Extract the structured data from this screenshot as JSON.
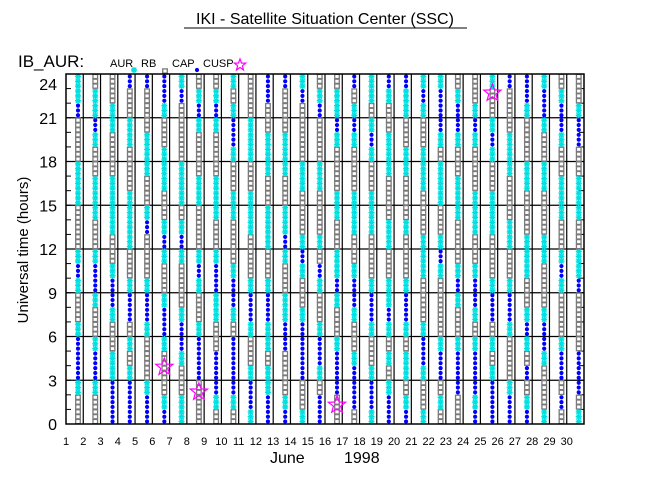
{
  "header": {
    "title": "IKI - Satellite Situation Center (SSC)"
  },
  "chart_data": {
    "type": "scatter",
    "title": "IKI - Satellite Situation Center (SSC)",
    "dataset_label": "IB_AUR:",
    "ylabel": "Universal time (hours)",
    "xlabel_month": "June",
    "xlabel_year": "1998",
    "xlim": [
      1,
      31
    ],
    "ylim": [
      0,
      24
    ],
    "grid": true,
    "x_ticks": [
      1,
      2,
      3,
      4,
      5,
      6,
      7,
      8,
      9,
      10,
      11,
      12,
      13,
      14,
      15,
      16,
      17,
      18,
      19,
      20,
      21,
      22,
      23,
      24,
      25,
      26,
      27,
      28,
      29,
      30
    ],
    "y_ticks": [
      0,
      3,
      6,
      9,
      12,
      15,
      18,
      21,
      24
    ],
    "legend_placement": "top-left",
    "legend": [
      {
        "label": "AUR",
        "marker": "asterisk",
        "color": "#00e0e0"
      },
      {
        "label": "RB",
        "marker": "square",
        "color": "#7a7a7a"
      },
      {
        "label": "CAP",
        "marker": "dot",
        "color": "#0000ff"
      },
      {
        "label": "CUSP",
        "marker": "star",
        "color": "#ff00ff"
      }
    ],
    "slot_codes": {
      "a": "AUR",
      "r": "RB",
      "c": "CAP"
    },
    "slots_note_hours": "each character = one UT hour, 0 to 23",
    "days": [
      {
        "day": 1,
        "hourly": "rracccarracarrraaarrrcaa"
      },
      {
        "day": 2,
        "hourly": "rraccarraccarraaarracaar"
      },
      {
        "day": 3,
        "hourly": "cccaarraccarraaaarrraarr"
      },
      {
        "day": 4,
        "hourly": "cccararccarraaaarrraarrc"
      },
      {
        "day": 5,
        "hourly": "ccarrraccarrrcarraaarrrc"
      },
      {
        "day": 6,
        "hourly": "carrraccarracarraaarracc"
      },
      {
        "day": 7,
        "hourly": "aarraccarrracaraaarrrrca"
      },
      {
        "day": 8,
        "hourly": "rrrcccarracarrraarrracar"
      },
      {
        "day": 9,
        "hourly": "racccrraaccarraaarrracar"
      },
      {
        "day": 10,
        "hourly": "raccccraccarrraarraccara"
      },
      {
        "day": 11,
        "hourly": "accarraccarrraaarraaarrr"
      },
      {
        "day": 12,
        "hourly": "ccaaraaccarraaarraaarrcc"
      },
      {
        "day": 13,
        "hourly": "carrrccaarracaarraaarrrc"
      },
      {
        "day": 14,
        "hourly": "arrccccarracarrraarrrrca"
      },
      {
        "day": 15,
        "hourly": "ccraccarracrarrraarrrcar"
      },
      {
        "day": 16,
        "hourly": "rrcccarracaarraarrracaar"
      },
      {
        "day": 17,
        "hourly": "rcccarraccarraaarrracarc"
      },
      {
        "day": 18,
        "hourly": "accarraccarrraaarracaraa"
      },
      {
        "day": 19,
        "hourly": "ccararacaarraarrraaarrac"
      },
      {
        "day": 20,
        "hourly": "caraaraccarrrarrraarraac"
      },
      {
        "day": 21,
        "hourly": "arraccarrraaarrraaarraca"
      },
      {
        "day": 22,
        "hourly": "rarccarrrracarraaaraccca"
      },
      {
        "day": 23,
        "hourly": "rrcccarracarrraaarraccar"
      },
      {
        "day": 24,
        "hourly": "cacccaraccarraaarrracarr"
      },
      {
        "day": 25,
        "hourly": "cccararccarrraaarracarra"
      },
      {
        "day": 26,
        "hourly": "ccarrraccarraarrraaarrrc"
      },
      {
        "day": 27,
        "hourly": "carcracarraaarrraarrracc"
      },
      {
        "day": 28,
        "hourly": "arrraccarrraarrraarracca"
      },
      {
        "day": 29,
        "hourly": "rcrccarrracarraaarraccar"
      },
      {
        "day": 30,
        "hourly": "arcccrrrrcaarraaarrccarr"
      }
    ],
    "cusp": [
      {
        "day": 6,
        "hour": 3.9
      },
      {
        "day": 8,
        "hour": 2.2
      },
      {
        "day": 16,
        "hour": 1.3
      },
      {
        "day": 25,
        "hour": 22.7
      }
    ]
  }
}
